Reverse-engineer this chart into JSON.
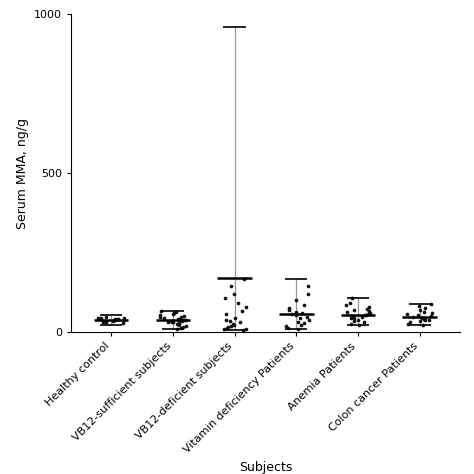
{
  "categories": [
    "Healthy control",
    "VB12-sufficient subjects",
    "VB12-deficient subjects",
    "Vitamin deficiency Patients",
    "Anemia Patients",
    "Colon cancer Patients"
  ],
  "ylabel": "Serum MMA, ng/g",
  "xlabel": "Subjects",
  "ylim": [
    0,
    1000
  ],
  "yticks": [
    0,
    500,
    1000
  ],
  "background_color": "#ffffff",
  "dot_color": "#111111",
  "error_color": "#999999",
  "group_specs": [
    {
      "name": "Healthy control",
      "mean": 38,
      "wlo": 22,
      "whi": 52,
      "pts": [
        28,
        30,
        32,
        33,
        35,
        36,
        37,
        38,
        39,
        40,
        41,
        42,
        43,
        45,
        47
      ]
    },
    {
      "name": "VB12-sufficient subjects",
      "mean": 38,
      "wlo": 10,
      "whi": 65,
      "pts": [
        10,
        12,
        15,
        18,
        22,
        25,
        28,
        30,
        32,
        35,
        37,
        38,
        40,
        42,
        44,
        46,
        48,
        50,
        52,
        55,
        58,
        62,
        65,
        38,
        36,
        34,
        30
      ]
    },
    {
      "name": "VB12-deficient subjects",
      "mean": 170,
      "wlo": 5,
      "whi": 960,
      "pts": [
        5,
        8,
        12,
        15,
        20,
        25,
        30,
        38,
        45,
        55,
        65,
        78,
        90,
        105,
        120,
        145,
        165,
        10,
        18,
        35
      ]
    },
    {
      "name": "Vitamin deficiency Patients",
      "mean": 55,
      "wlo": 8,
      "whi": 165,
      "pts": [
        8,
        12,
        18,
        22,
        28,
        32,
        38,
        42,
        48,
        52,
        55,
        58,
        62,
        68,
        75,
        85,
        100,
        120,
        145
      ]
    },
    {
      "name": "Anemia Patients",
      "mean": 52,
      "wlo": 20,
      "whi": 105,
      "pts": [
        20,
        25,
        30,
        35,
        38,
        42,
        45,
        48,
        50,
        52,
        54,
        56,
        58,
        62,
        65,
        68,
        72,
        78,
        85,
        92,
        105
      ]
    },
    {
      "name": "Colon cancer Patients",
      "mean": 48,
      "wlo": 22,
      "whi": 88,
      "pts": [
        22,
        26,
        30,
        33,
        36,
        38,
        40,
        42,
        45,
        47,
        50,
        52,
        55,
        58,
        62,
        68,
        75,
        82,
        88
      ]
    }
  ]
}
